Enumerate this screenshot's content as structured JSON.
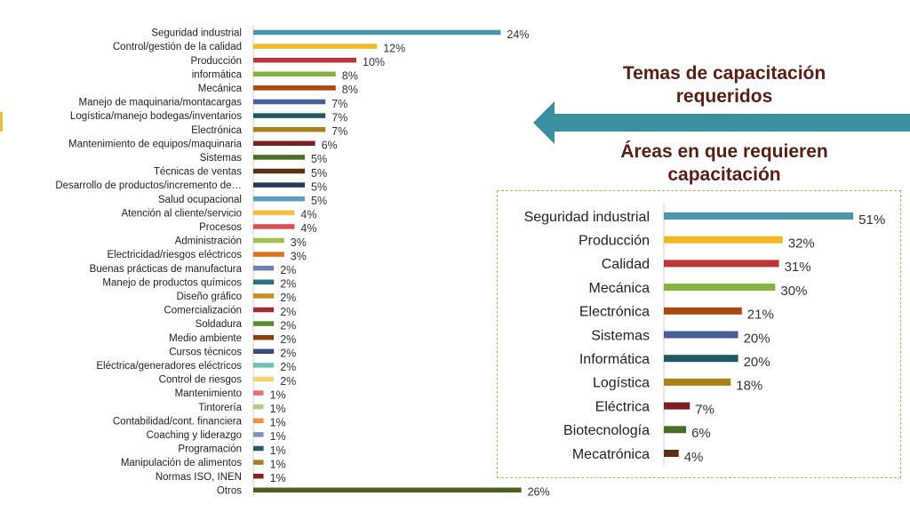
{
  "titles": {
    "topics": "Temas de capacitación requeridos",
    "areas": "Áreas en que requieren capacitación"
  },
  "colors": {
    "title": "#5a1f14",
    "arrow": "#3a8fa0",
    "box_border": "#e0a060"
  },
  "chart_data": [
    {
      "type": "bar",
      "orientation": "horizontal",
      "title": "Temas de capacitación requeridos",
      "categories": [
        "Seguridad industrial",
        "Control/gestión de la calidad",
        "Producción",
        "informática",
        "Mecánica",
        "Manejo de maquinaria/montacargas",
        "Logística/manejo bodegas/inventarios",
        "Electrónica",
        "Mantenimiento de equipos/maquinaria",
        "Sistemas",
        "Técnicas de ventas",
        "Desarrollo de productos/incremento de…",
        "Salud ocupacional",
        "Atención al cliente/servicio",
        "Procesos",
        "Administración",
        "Electricidad/riesgos eléctricos",
        "Buenas prácticas de manufactura",
        "Manejo de productos químicos",
        "Diseño gráfico",
        "Comercialización",
        "Soldadura",
        "Medio ambiente",
        "Cursos técnicos",
        "Eléctrica/generadores eléctricos",
        "Control de riesgos",
        "Mantenimiento",
        "Tintorería",
        "Contabilidad/cont. financiera",
        "Coaching y liderazgo",
        "Programación",
        "Manipulación de alimentos",
        "Normas ISO, INEN",
        "Otros"
      ],
      "values": [
        24,
        12,
        10,
        8,
        8,
        7,
        7,
        7,
        6,
        5,
        5,
        5,
        5,
        4,
        4,
        3,
        3,
        2,
        2,
        2,
        2,
        2,
        2,
        2,
        2,
        2,
        1,
        1,
        1,
        1,
        1,
        1,
        1,
        26
      ],
      "labels": [
        "24%",
        "12%",
        "10%",
        "8%",
        "8%",
        "7%",
        "7%",
        "7%",
        "6%",
        "5%",
        "5%",
        "5%",
        "5%",
        "4%",
        "4%",
        "3%",
        "3%",
        "2%",
        "2%",
        "2%",
        "2%",
        "2%",
        "2%",
        "2%",
        "2%",
        "2%",
        "1%",
        "1%",
        "1%",
        "1%",
        "1%",
        "1%",
        "1%",
        "26%"
      ],
      "colors": [
        "#4a95b0",
        "#f5b820",
        "#c0343c",
        "#86b040",
        "#a84a10",
        "#4a5e9a",
        "#1e5a60",
        "#a88018",
        "#7a2020",
        "#4a6e28",
        "#5a3010",
        "#2a3a5a",
        "#5aa0c0",
        "#f5c040",
        "#d85050",
        "#a0c050",
        "#e07020",
        "#7080b0",
        "#2a7080",
        "#c89020",
        "#a03030",
        "#5a8a30",
        "#8a4010",
        "#3a4a7a",
        "#70c0c0",
        "#f8d070",
        "#e87070",
        "#b0d080",
        "#f09040",
        "#8090c0",
        "#2a5a60",
        "#a08020",
        "#902020",
        "#4a6020"
      ],
      "xlim": [
        0,
        26
      ]
    },
    {
      "type": "bar",
      "orientation": "horizontal",
      "title": "Áreas en que requieren capacitación",
      "categories": [
        "Seguridad industrial",
        "Producción",
        "Calidad",
        "Mecánica",
        "Electrónica",
        "Sistemas",
        "Informática",
        "Logística",
        "Eléctrica",
        "Biotecnología",
        "Mecatrónica"
      ],
      "values": [
        51,
        32,
        31,
        30,
        21,
        20,
        20,
        18,
        7,
        6,
        4
      ],
      "labels": [
        "51%",
        "32%",
        "31%",
        "30%",
        "21%",
        "20%",
        "20%",
        "18%",
        "7%",
        "6%",
        "4%"
      ],
      "colors": [
        "#4a95b0",
        "#f5b820",
        "#c0343c",
        "#86b040",
        "#a84a10",
        "#4a5e9a",
        "#1e5a60",
        "#a88018",
        "#7a2020",
        "#4a6e28",
        "#5a3010"
      ],
      "xlim": [
        0,
        51
      ]
    }
  ]
}
